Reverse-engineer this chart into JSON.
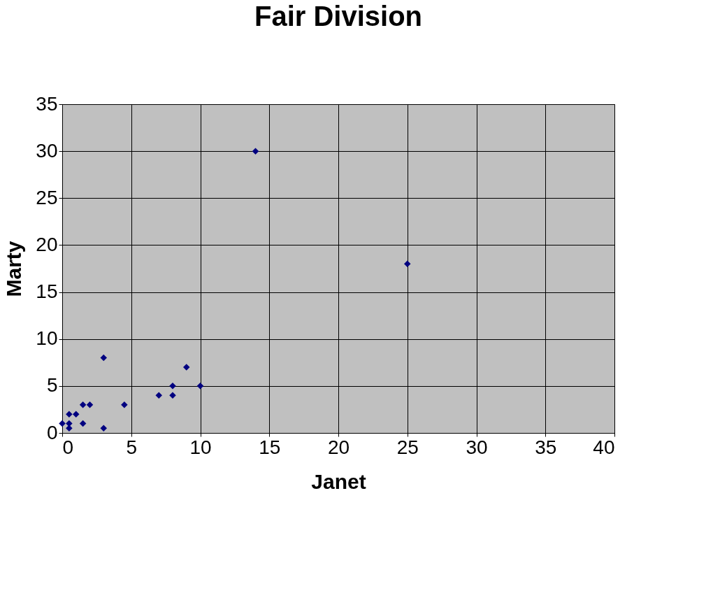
{
  "chart_data": {
    "type": "scatter",
    "title": "Fair Division",
    "xlabel": "Janet",
    "ylabel": "Marty",
    "x": [
      0,
      0.5,
      0.5,
      0.5,
      1,
      1.5,
      2,
      1.5,
      3,
      3,
      4.5,
      7,
      8,
      8,
      9,
      10,
      14,
      25
    ],
    "series": [
      {
        "color": "#000080",
        "values": [
          1,
          1,
          0.5,
          2,
          2,
          3,
          3,
          1,
          8,
          0.5,
          3,
          4,
          4,
          5,
          7,
          5,
          30,
          18
        ]
      }
    ],
    "xlim": [
      0,
      40
    ],
    "xticks": [
      0,
      5,
      10,
      15,
      20,
      25,
      30,
      35,
      40
    ],
    "ylim": [
      0,
      35
    ],
    "yticks": [
      0,
      5,
      10,
      15,
      20,
      25,
      30,
      35
    ],
    "grid": true,
    "marker": "diamond",
    "legend": false
  }
}
